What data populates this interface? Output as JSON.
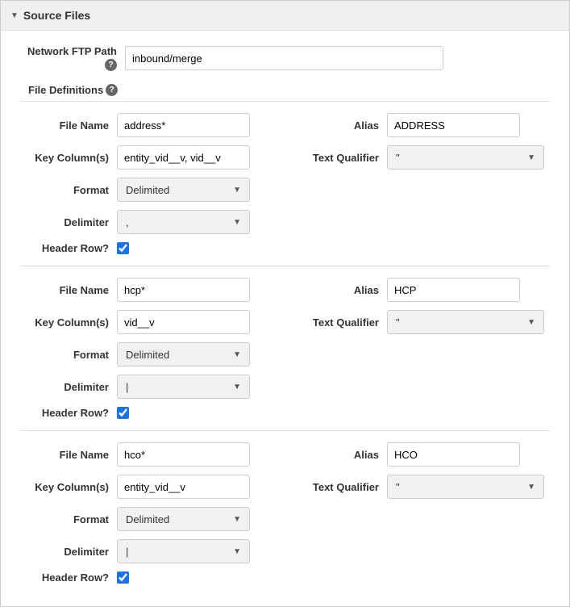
{
  "section_title": "Source Files",
  "network_ftp_label": "Network FTP Path",
  "network_ftp_value": "inbound/merge",
  "file_defs_label": "File Definitions",
  "labels": {
    "file_name": "File Name",
    "key_cols": "Key Column(s)",
    "format": "Format",
    "delimiter": "Delimiter",
    "header_row": "Header Row?",
    "alias": "Alias",
    "text_qual": "Text Qualifier"
  },
  "defs": [
    {
      "file_name": "address*",
      "key_cols": "entity_vid__v, vid__v",
      "format": "Delimited",
      "delimiter": ",",
      "header_row": true,
      "alias": "ADDRESS",
      "text_qual": "\""
    },
    {
      "file_name": "hcp*",
      "key_cols": "vid__v",
      "format": "Delimited",
      "delimiter": "|",
      "header_row": true,
      "alias": "HCP",
      "text_qual": "\""
    },
    {
      "file_name": "hco*",
      "key_cols": "entity_vid__v",
      "format": "Delimited",
      "delimiter": "|",
      "header_row": true,
      "alias": "HCO",
      "text_qual": "\""
    }
  ]
}
